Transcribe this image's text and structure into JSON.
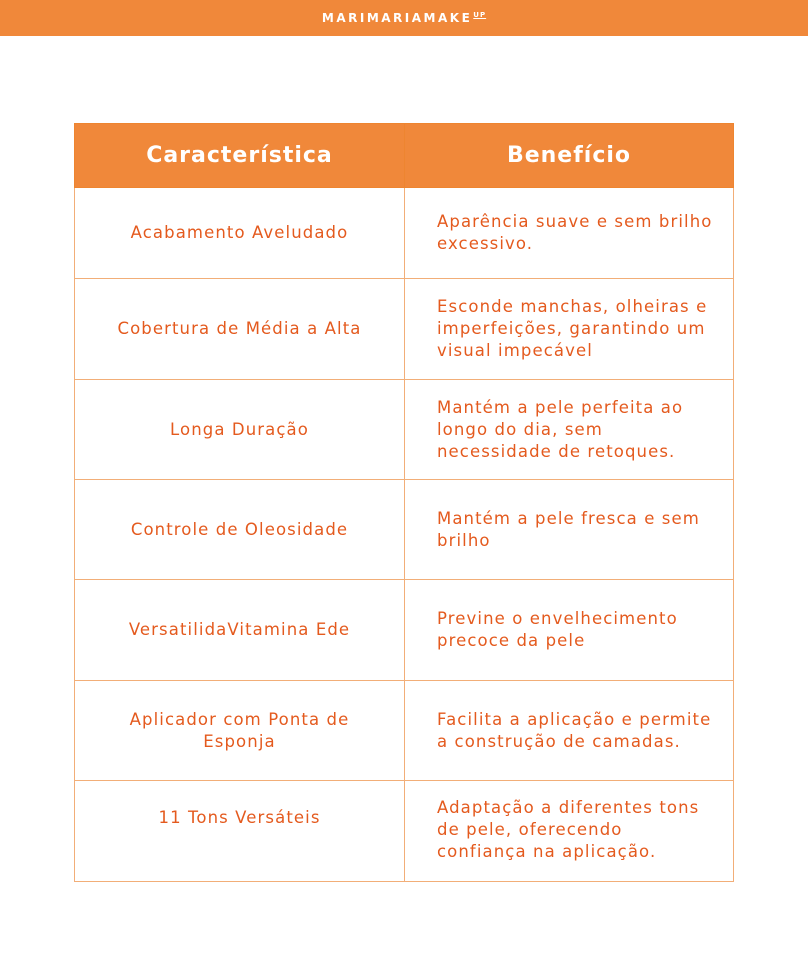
{
  "brand": {
    "logo_text": "MARIMARIAMAKE",
    "logo_sup": "UP"
  },
  "colors": {
    "accent": "#F0883A",
    "text": "#E45A1E",
    "border": "#F2AE78"
  },
  "table": {
    "headers": [
      "Característica",
      "Benefício"
    ],
    "rows": [
      {
        "feature": "Acabamento Aveludado",
        "benefit": "Aparência suave e sem brilho excessivo."
      },
      {
        "feature": "Cobertura de Média a Alta",
        "benefit": "Esconde manchas, olheiras e imperfeições, garantindo um visual impecável"
      },
      {
        "feature": "Longa Duração",
        "benefit": "Mantém a pele perfeita ao longo do dia, sem necessidade de retoques."
      },
      {
        "feature": "Controle de Oleosidade",
        "benefit": "Mantém a pele fresca e sem brilho"
      },
      {
        "feature": "VersatilidaVitamina Ede",
        "benefit": "Previne o envelhecimento precoce da pele"
      },
      {
        "feature": "Aplicador com Ponta de Esponja",
        "benefit": "Facilita a aplicação e permite a construção de camadas."
      },
      {
        "feature": "11 Tons Versáteis",
        "benefit": "Adaptação a diferentes tons de pele, oferecendo confiança na aplicação."
      }
    ]
  }
}
